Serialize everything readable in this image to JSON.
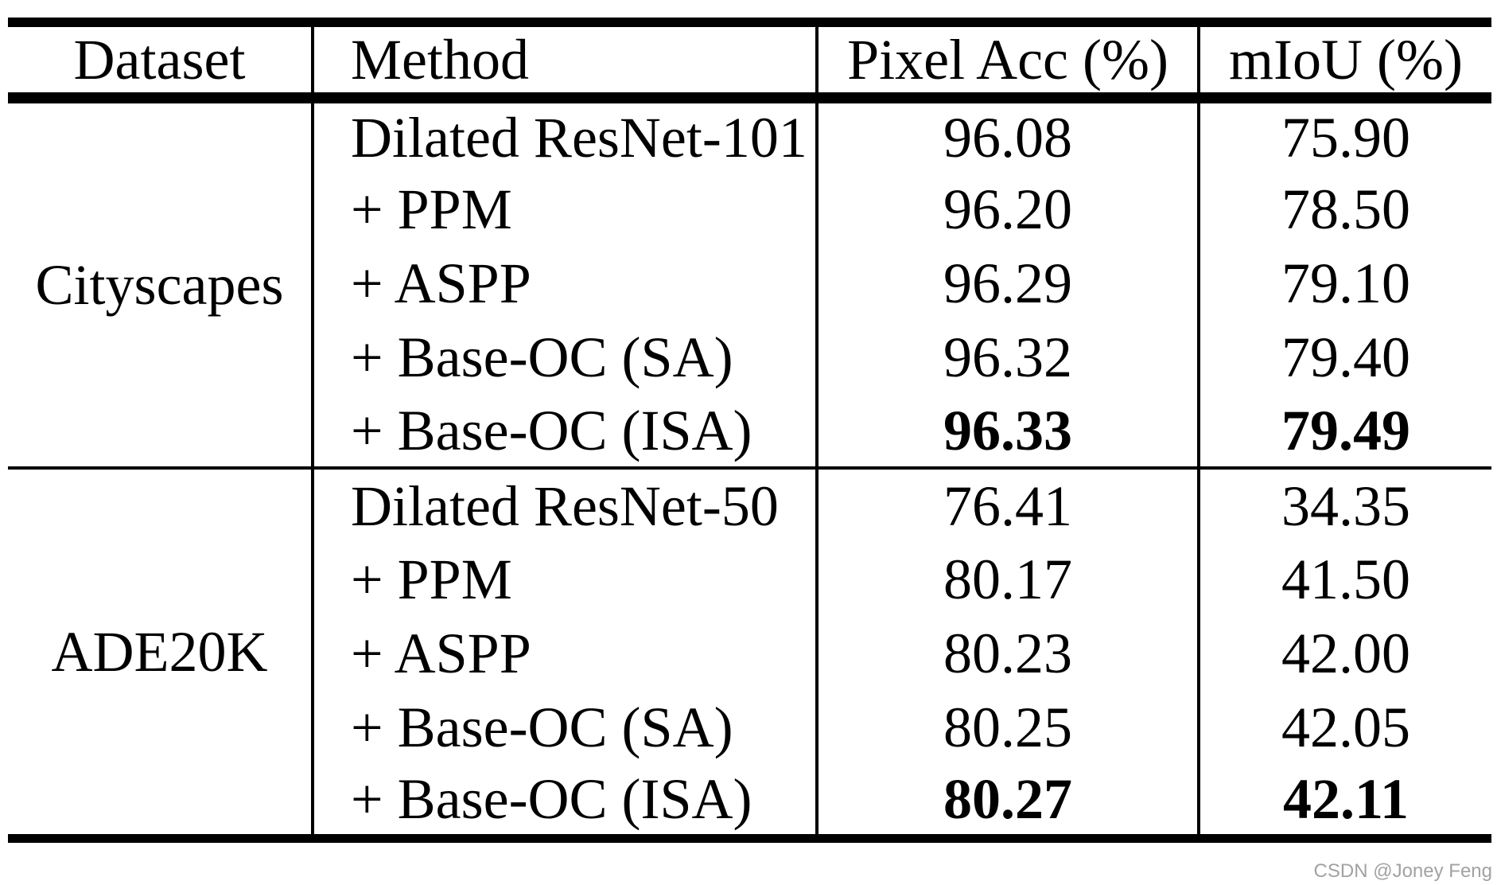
{
  "watermark": "CSDN @Joney Feng",
  "colors": {
    "text": "#000000",
    "background": "#ffffff",
    "border": "#000000",
    "watermark_gray": "#a2a2a2"
  },
  "table": {
    "headers": {
      "dataset": "Dataset",
      "method": "Method",
      "pixel_acc": "Pixel Acc (%)",
      "miou": "mIoU (%)"
    },
    "sections": [
      {
        "dataset": "Cityscapes",
        "rows": [
          {
            "method": "Dilated ResNet-101",
            "pixel_acc": "96.08",
            "miou": "75.90"
          },
          {
            "method": "+ PPM",
            "pixel_acc": "96.20",
            "miou": "78.50"
          },
          {
            "method": "+ ASPP",
            "pixel_acc": "96.29",
            "miou": "79.10"
          },
          {
            "method": "+ Base-OC (SA)",
            "pixel_acc": "96.32",
            "miou": "79.40"
          },
          {
            "method": "+ Base-OC (ISA)",
            "pixel_acc": "96.33",
            "miou": "79.49"
          }
        ]
      },
      {
        "dataset": "ADE20K",
        "rows": [
          {
            "method": "Dilated ResNet-50",
            "pixel_acc": "76.41",
            "miou": "34.35"
          },
          {
            "method": "+ PPM",
            "pixel_acc": "80.17",
            "miou": "41.50"
          },
          {
            "method": "+ ASPP",
            "pixel_acc": "80.23",
            "miou": "42.00"
          },
          {
            "method": "+ Base-OC (SA)",
            "pixel_acc": "80.25",
            "miou": "42.05"
          },
          {
            "method": "+ Base-OC (ISA)",
            "pixel_acc": "80.27",
            "miou": "42.11"
          }
        ]
      }
    ]
  }
}
